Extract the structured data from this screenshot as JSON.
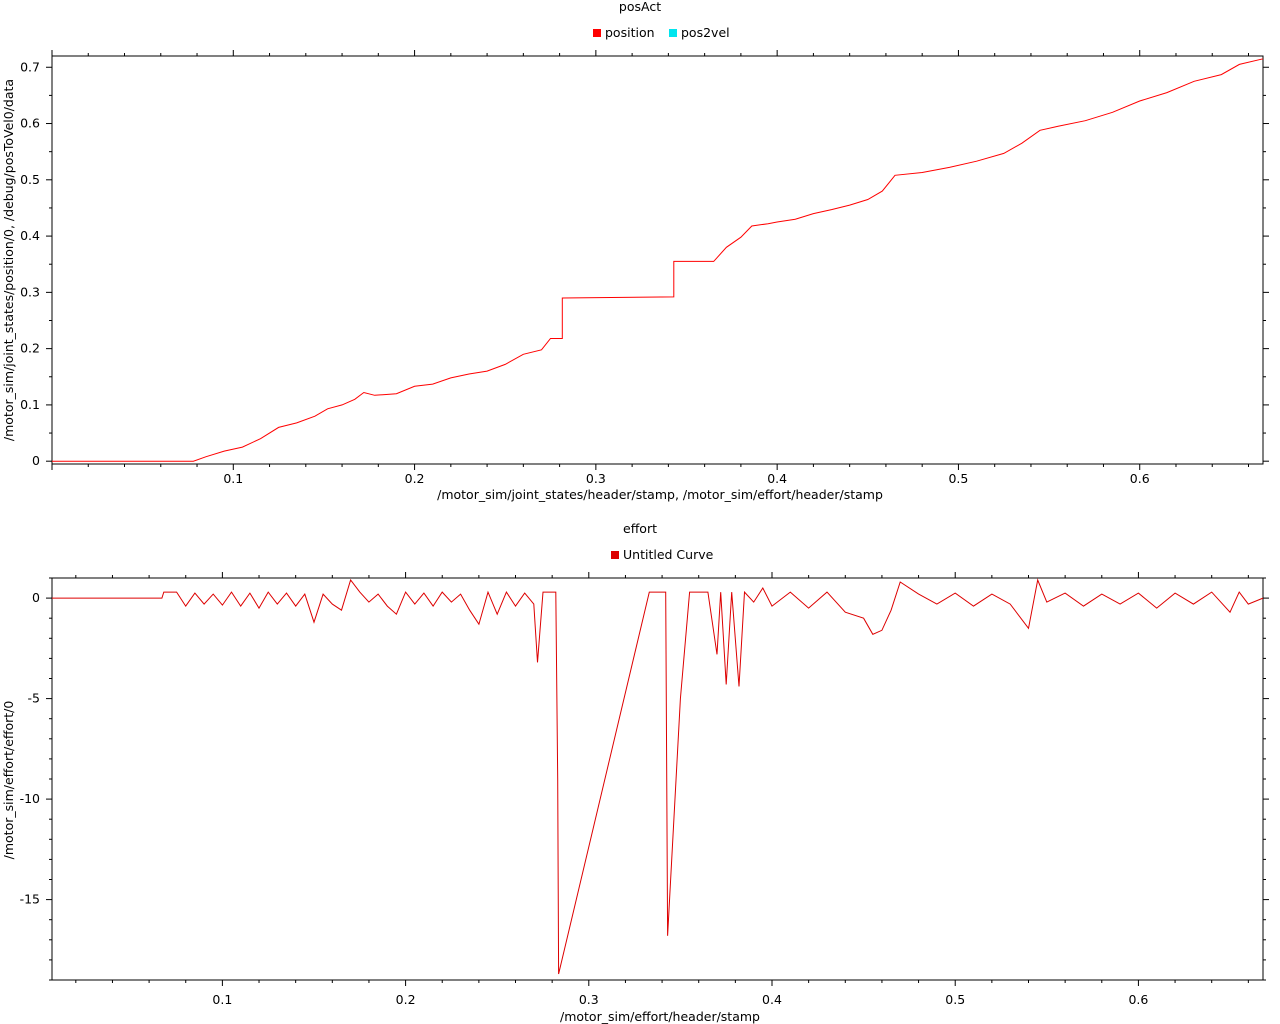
{
  "colors": {
    "position": "#ff0000",
    "pos2vel": "#00e5ee",
    "effort": "#dd0000"
  },
  "chart_data": [
    {
      "type": "line",
      "title": "posAct",
      "xlabel": "/motor_sim/joint_states/header/stamp, /motor_sim/effort/header/stamp",
      "ylabel": "/motor_sim/joint_states/position/0, /debug/posToVel0/data",
      "xlim": [
        0.0,
        0.668
      ],
      "ylim": [
        -0.005,
        0.72
      ],
      "xticks": [
        "0.1",
        "0.2",
        "0.3",
        "0.4",
        "0.5",
        "0.6"
      ],
      "yticks": [
        "0",
        "0.1",
        "0.2",
        "0.3",
        "0.4",
        "0.5",
        "0.6",
        "0.7"
      ],
      "legend": [
        {
          "name": "position",
          "color": "#ff0000"
        },
        {
          "name": "pos2vel",
          "color": "#00e5ee"
        }
      ],
      "legend_position": "top-center",
      "grid": false,
      "series": [
        {
          "name": "position",
          "points": [
            [
              0.0,
              0.0
            ],
            [
              0.078,
              0.0
            ],
            [
              0.085,
              0.008
            ],
            [
              0.095,
              0.018
            ],
            [
              0.105,
              0.025
            ],
            [
              0.115,
              0.04
            ],
            [
              0.125,
              0.06
            ],
            [
              0.135,
              0.068
            ],
            [
              0.145,
              0.08
            ],
            [
              0.152,
              0.093
            ],
            [
              0.16,
              0.1
            ],
            [
              0.167,
              0.11
            ],
            [
              0.172,
              0.122
            ],
            [
              0.178,
              0.117
            ],
            [
              0.19,
              0.12
            ],
            [
              0.2,
              0.133
            ],
            [
              0.21,
              0.137
            ],
            [
              0.22,
              0.148
            ],
            [
              0.23,
              0.155
            ],
            [
              0.24,
              0.16
            ],
            [
              0.25,
              0.172
            ],
            [
              0.26,
              0.19
            ],
            [
              0.27,
              0.198
            ],
            [
              0.275,
              0.218
            ],
            [
              0.2815,
              0.218
            ],
            [
              0.2815,
              0.29
            ],
            [
              0.343,
              0.292
            ],
            [
              0.343,
              0.355
            ],
            [
              0.365,
              0.355
            ],
            [
              0.372,
              0.38
            ],
            [
              0.38,
              0.398
            ],
            [
              0.386,
              0.418
            ],
            [
              0.395,
              0.422
            ],
            [
              0.4,
              0.425
            ],
            [
              0.41,
              0.43
            ],
            [
              0.42,
              0.44
            ],
            [
              0.43,
              0.447
            ],
            [
              0.44,
              0.455
            ],
            [
              0.45,
              0.465
            ],
            [
              0.458,
              0.48
            ],
            [
              0.465,
              0.508
            ],
            [
              0.48,
              0.513
            ],
            [
              0.495,
              0.522
            ],
            [
              0.51,
              0.533
            ],
            [
              0.525,
              0.547
            ],
            [
              0.535,
              0.565
            ],
            [
              0.545,
              0.588
            ],
            [
              0.555,
              0.595
            ],
            [
              0.57,
              0.605
            ],
            [
              0.585,
              0.62
            ],
            [
              0.6,
              0.64
            ],
            [
              0.615,
              0.655
            ],
            [
              0.63,
              0.675
            ],
            [
              0.645,
              0.687
            ],
            [
              0.655,
              0.705
            ],
            [
              0.668,
              0.715
            ]
          ]
        },
        {
          "name": "pos2vel",
          "points": []
        }
      ]
    },
    {
      "type": "line",
      "title": "effort",
      "xlabel": "/motor_sim/effort/header/stamp",
      "ylabel": "/motor_sim/effort/effort/0",
      "xlim": [
        0.007,
        0.668
      ],
      "ylim": [
        -19.0,
        1.0
      ],
      "xticks": [
        "0.1",
        "0.2",
        "0.3",
        "0.4",
        "0.5",
        "0.6"
      ],
      "yticks": [
        "0",
        "-5",
        "-10",
        "-15"
      ],
      "legend": [
        {
          "name": "Untitled Curve",
          "color": "#dd0000"
        }
      ],
      "legend_position": "top-center",
      "grid": false,
      "series": [
        {
          "name": "Untitled Curve",
          "points": [
            [
              0.007,
              0.0
            ],
            [
              0.067,
              0.0
            ],
            [
              0.068,
              0.3
            ],
            [
              0.075,
              0.3
            ],
            [
              0.08,
              -0.4
            ],
            [
              0.085,
              0.25
            ],
            [
              0.09,
              -0.3
            ],
            [
              0.095,
              0.2
            ],
            [
              0.1,
              -0.35
            ],
            [
              0.105,
              0.3
            ],
            [
              0.11,
              -0.4
            ],
            [
              0.115,
              0.25
            ],
            [
              0.12,
              -0.5
            ],
            [
              0.125,
              0.3
            ],
            [
              0.13,
              -0.3
            ],
            [
              0.135,
              0.25
            ],
            [
              0.14,
              -0.4
            ],
            [
              0.145,
              0.2
            ],
            [
              0.15,
              -1.2
            ],
            [
              0.155,
              0.2
            ],
            [
              0.16,
              -0.3
            ],
            [
              0.165,
              -0.6
            ],
            [
              0.17,
              0.9
            ],
            [
              0.175,
              0.3
            ],
            [
              0.18,
              -0.2
            ],
            [
              0.185,
              0.2
            ],
            [
              0.19,
              -0.4
            ],
            [
              0.195,
              -0.8
            ],
            [
              0.2,
              0.3
            ],
            [
              0.205,
              -0.3
            ],
            [
              0.21,
              0.25
            ],
            [
              0.215,
              -0.4
            ],
            [
              0.22,
              0.3
            ],
            [
              0.225,
              -0.2
            ],
            [
              0.23,
              0.2
            ],
            [
              0.235,
              -0.6
            ],
            [
              0.24,
              -1.3
            ],
            [
              0.245,
              0.3
            ],
            [
              0.25,
              -0.8
            ],
            [
              0.255,
              0.3
            ],
            [
              0.26,
              -0.4
            ],
            [
              0.265,
              0.25
            ],
            [
              0.27,
              -0.3
            ],
            [
              0.272,
              -3.2
            ],
            [
              0.275,
              0.3
            ],
            [
              0.282,
              0.3
            ],
            [
              0.283,
              -9.0
            ],
            [
              0.2835,
              -18.7
            ],
            [
              0.333,
              0.3
            ],
            [
              0.342,
              0.3
            ],
            [
              0.343,
              -16.8
            ],
            [
              0.35,
              -5.0
            ],
            [
              0.355,
              0.3
            ],
            [
              0.365,
              0.3
            ],
            [
              0.37,
              -2.8
            ],
            [
              0.372,
              0.3
            ],
            [
              0.375,
              -4.3
            ],
            [
              0.378,
              0.3
            ],
            [
              0.382,
              -4.4
            ],
            [
              0.385,
              0.3
            ],
            [
              0.39,
              -0.2
            ],
            [
              0.395,
              0.5
            ],
            [
              0.4,
              -0.4
            ],
            [
              0.41,
              0.3
            ],
            [
              0.42,
              -0.5
            ],
            [
              0.43,
              0.3
            ],
            [
              0.44,
              -0.7
            ],
            [
              0.45,
              -1.0
            ],
            [
              0.455,
              -1.8
            ],
            [
              0.46,
              -1.6
            ],
            [
              0.465,
              -0.6
            ],
            [
              0.47,
              0.8
            ],
            [
              0.48,
              0.2
            ],
            [
              0.49,
              -0.3
            ],
            [
              0.5,
              0.25
            ],
            [
              0.51,
              -0.4
            ],
            [
              0.52,
              0.2
            ],
            [
              0.53,
              -0.3
            ],
            [
              0.54,
              -1.5
            ],
            [
              0.545,
              0.9
            ],
            [
              0.55,
              -0.2
            ],
            [
              0.56,
              0.25
            ],
            [
              0.57,
              -0.4
            ],
            [
              0.58,
              0.2
            ],
            [
              0.59,
              -0.3
            ],
            [
              0.6,
              0.25
            ],
            [
              0.61,
              -0.5
            ],
            [
              0.62,
              0.25
            ],
            [
              0.63,
              -0.3
            ],
            [
              0.64,
              0.3
            ],
            [
              0.65,
              -0.7
            ],
            [
              0.655,
              0.3
            ],
            [
              0.66,
              -0.3
            ],
            [
              0.668,
              0.0
            ]
          ]
        }
      ]
    }
  ]
}
